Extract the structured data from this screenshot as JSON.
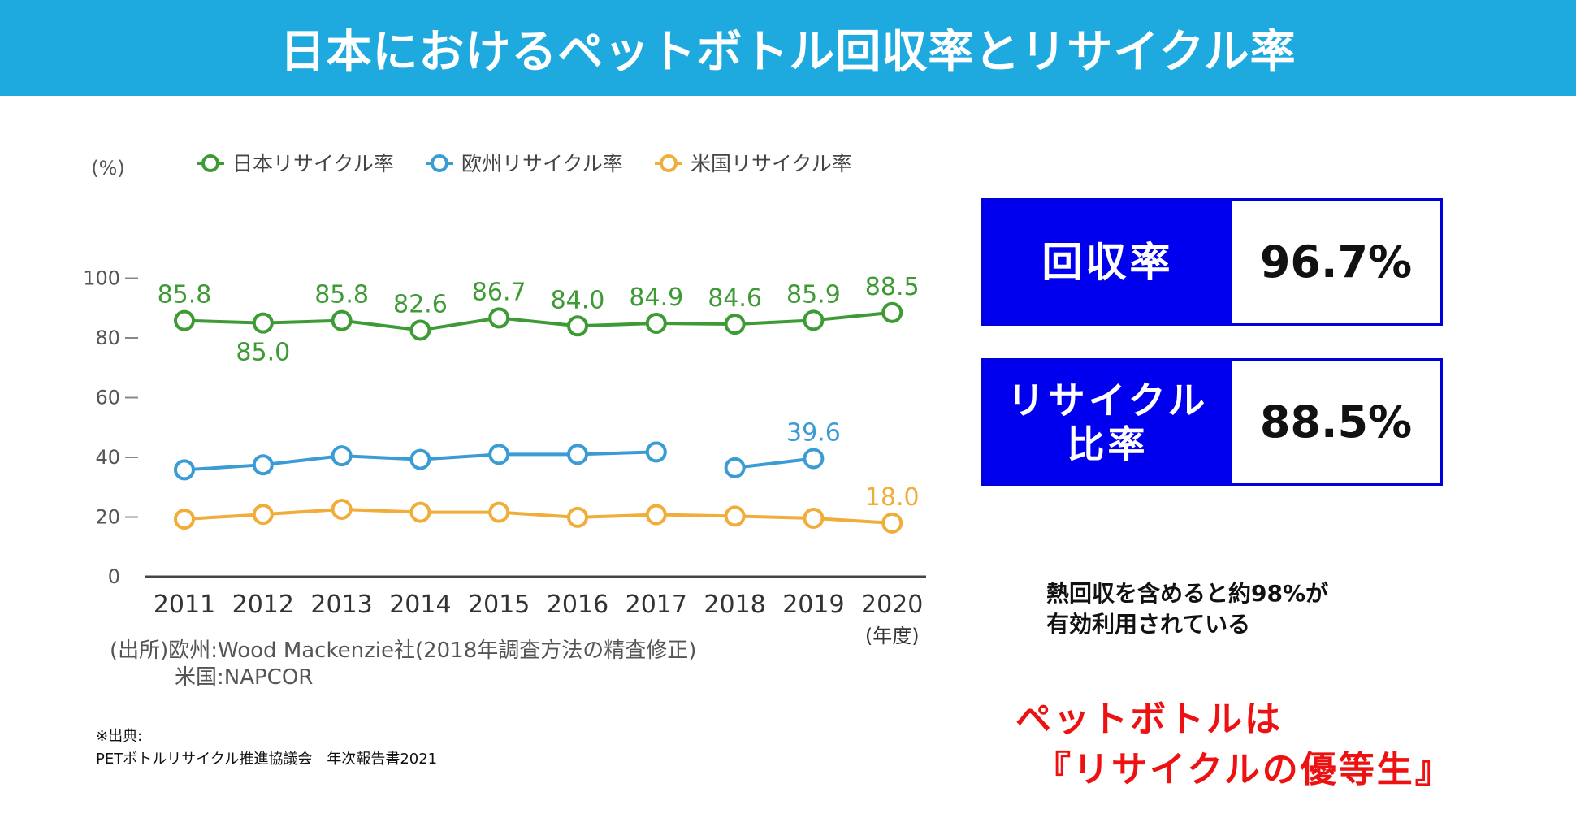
{
  "title": "日本におけるペットボトル回収率とリサイクル率",
  "chart_data": {
    "type": "line",
    "ylabel": "(%)",
    "xlabel": "(年度)",
    "ylim": [
      0,
      100
    ],
    "yticks": [
      0,
      20,
      40,
      60,
      80,
      100
    ],
    "categories": [
      "2011",
      "2012",
      "2013",
      "2014",
      "2015",
      "2016",
      "2017",
      "2018",
      "2019",
      "2020"
    ],
    "legend_position": "top",
    "series": [
      {
        "name": "日本リサイクル率",
        "color": "#3d9a35",
        "values": [
          85.8,
          85.0,
          85.8,
          82.6,
          86.7,
          84.0,
          84.9,
          84.6,
          85.9,
          88.5
        ],
        "data_labels": [
          "85.8",
          "85.0",
          "85.8",
          "82.6",
          "86.7",
          "84.0",
          "84.9",
          "84.6",
          "85.9",
          "88.5"
        ]
      },
      {
        "name": "欧州リサイクル率",
        "color": "#3a9bd5",
        "values": [
          35.8,
          37.5,
          40.5,
          39.3,
          41.0,
          41.0,
          41.8,
          36.5,
          39.6,
          null
        ],
        "data_labels": [
          null,
          null,
          null,
          null,
          null,
          null,
          null,
          null,
          "39.6",
          null
        ]
      },
      {
        "name": "米国リサイクル率",
        "color": "#f0ad3a",
        "values": [
          19.3,
          20.9,
          22.6,
          21.6,
          21.6,
          19.9,
          20.8,
          20.3,
          19.6,
          18.0
        ],
        "data_labels": [
          null,
          null,
          null,
          null,
          null,
          null,
          null,
          null,
          null,
          "18.0"
        ]
      }
    ]
  },
  "source_note": {
    "line1": "(出所)欧州:Wood Mackenzie社(2018年調査方法の精査修正)",
    "line2": "米国:NAPCOR"
  },
  "citation": {
    "line1": "※出典:",
    "line2": "PETボトルリサイクル推進協議会　年次報告書2021"
  },
  "stats": {
    "recovery": {
      "label": "回収率",
      "value": "96.7%"
    },
    "recycle": {
      "label_line1": "リサイクル",
      "label_line2": "比率",
      "value": "88.5%"
    }
  },
  "note": {
    "line1": "熱回収を含めると約98%が",
    "line2": "有効利用されている"
  },
  "slogan": {
    "line1": "ペットボトルは",
    "line2": "『リサイクルの優等生』"
  },
  "colors": {
    "title_bar": "#1faadf",
    "box_blue": "#0000ee",
    "slogan_red": "#ee1111"
  }
}
